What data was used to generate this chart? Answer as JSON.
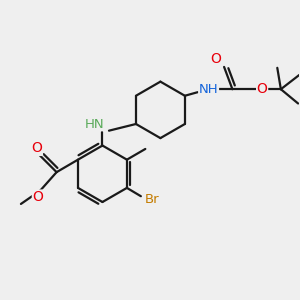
{
  "background_color": "#efefef",
  "bond_color": "#1a1a1a",
  "atom_colors": {
    "O": "#e8000b",
    "N": "#1464db",
    "NH_amine": "#5aaa5a",
    "Br": "#c47c00",
    "C": "#1a1a1a"
  },
  "bond_width": 1.6,
  "dbl_sep": 0.12,
  "font_size": 9.0,
  "fig_width": 3.0,
  "fig_height": 3.0,
  "dpi": 100
}
